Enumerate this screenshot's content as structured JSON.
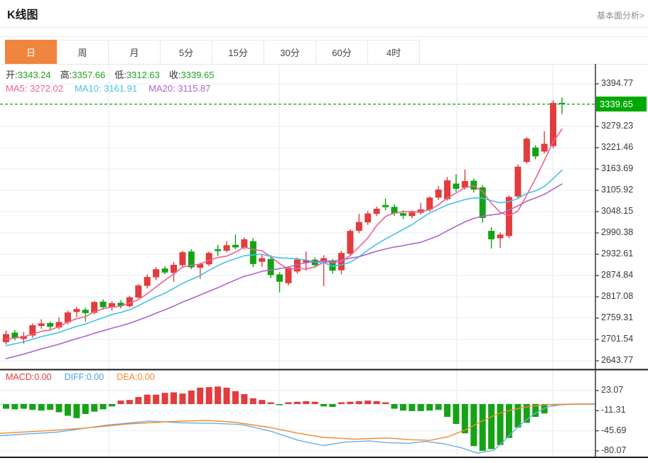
{
  "header": {
    "title": "K线图",
    "link": "基本面分析>"
  },
  "tabs": [
    {
      "label": "日",
      "active": true
    },
    {
      "label": "周",
      "active": false
    },
    {
      "label": "月",
      "active": false
    },
    {
      "label": "5分",
      "active": false
    },
    {
      "label": "15分",
      "active": false
    },
    {
      "label": "30分",
      "active": false
    },
    {
      "label": "60分",
      "active": false
    },
    {
      "label": "4时",
      "active": false
    }
  ],
  "ohlc": {
    "open_label": "开:",
    "open_value": "3343.24",
    "high_label": "高:",
    "high_value": "3357.66",
    "low_label": "低:",
    "low_value": "3312.63",
    "close_label": "收:",
    "close_value": "3339.65"
  },
  "ma_legend": {
    "ma5": "MA5: 3272.02",
    "ma10": "MA10: 3161.91",
    "ma20": "MA20: 3115.87"
  },
  "macd_legend": {
    "macd": "MACD:0.00",
    "diff": "DIFF:0.00",
    "dea": "DEA:0.00"
  },
  "colors": {
    "up": "#e23c3c",
    "down": "#15a315",
    "price_badge_bg": "#00a800",
    "price_line": "#00aa00",
    "ma5": "#ef6191",
    "ma10": "#49c0e6",
    "ma20": "#b164cb",
    "diff_line": "#6aaee6",
    "dea_line": "#ef8c2e",
    "zero_line": "#b9dbf2",
    "grid": "#e9eef5",
    "vgrid": "#dfe9f3",
    "axis": "#333333",
    "tab_active_bg": "#f0853f",
    "ohlc_value": "#22a422"
  },
  "chart_data": {
    "type": "candlestick",
    "title": "K线图",
    "period_selected": "日",
    "main_panel": {
      "y_ticks": [
        3394.77,
        3279.23,
        3221.46,
        3163.69,
        3105.92,
        3048.15,
        2990.38,
        2932.61,
        2874.84,
        2817.08,
        2759.31,
        2701.54,
        2643.77
      ],
      "current_price": 3339.65,
      "current_price_label": "3339.65",
      "last_ohlc": {
        "open": 3343.24,
        "high": 3357.66,
        "low": 3312.63,
        "close": 3339.65
      },
      "ma_values": {
        "MA5": 3272.02,
        "MA10": 3161.91,
        "MA20": 3115.87
      },
      "ma_periods": [
        5,
        10,
        20
      ],
      "candles_format": [
        "open",
        "high",
        "low",
        "close"
      ],
      "candles": [
        [
          2694,
          2726,
          2688,
          2716
        ],
        [
          2720,
          2727,
          2699,
          2705
        ],
        [
          2703,
          2722,
          2690,
          2711
        ],
        [
          2712,
          2745,
          2706,
          2740
        ],
        [
          2738,
          2756,
          2730,
          2745
        ],
        [
          2746,
          2750,
          2728,
          2736
        ],
        [
          2734,
          2762,
          2729,
          2749
        ],
        [
          2748,
          2780,
          2742,
          2775
        ],
        [
          2776,
          2790,
          2762,
          2784
        ],
        [
          2782,
          2788,
          2750,
          2773
        ],
        [
          2774,
          2806,
          2770,
          2803
        ],
        [
          2804,
          2810,
          2782,
          2789
        ],
        [
          2788,
          2805,
          2780,
          2800
        ],
        [
          2801,
          2808,
          2786,
          2793
        ],
        [
          2792,
          2820,
          2788,
          2816
        ],
        [
          2815,
          2852,
          2812,
          2848
        ],
        [
          2847,
          2878,
          2840,
          2871
        ],
        [
          2870,
          2898,
          2862,
          2892
        ],
        [
          2894,
          2900,
          2878,
          2883
        ],
        [
          2882,
          2912,
          2858,
          2904
        ],
        [
          2903,
          2942,
          2898,
          2938
        ],
        [
          2940,
          2946,
          2892,
          2897
        ],
        [
          2896,
          2910,
          2866,
          2906
        ],
        [
          2905,
          2940,
          2900,
          2936
        ],
        [
          2946,
          2958,
          2928,
          2941
        ],
        [
          2942,
          2968,
          2938,
          2957
        ],
        [
          2958,
          2986,
          2946,
          2951
        ],
        [
          2950,
          2978,
          2946,
          2973
        ],
        [
          2968,
          2976,
          2898,
          2906
        ],
        [
          2912,
          2934,
          2898,
          2922
        ],
        [
          2920,
          2930,
          2868,
          2876
        ],
        [
          2878,
          2884,
          2829,
          2858
        ],
        [
          2854,
          2900,
          2848,
          2896
        ],
        [
          2886,
          2924,
          2880,
          2918
        ],
        [
          2910,
          2940,
          2888,
          2916
        ],
        [
          2918,
          2924,
          2896,
          2903
        ],
        [
          2912,
          2930,
          2846,
          2922
        ],
        [
          2915,
          2920,
          2880,
          2888
        ],
        [
          2889,
          2942,
          2878,
          2936
        ],
        [
          2934,
          3000,
          2928,
          2996
        ],
        [
          2996,
          3042,
          2990,
          3020
        ],
        [
          3019,
          3050,
          3012,
          3043
        ],
        [
          3042,
          3062,
          3036,
          3056
        ],
        [
          3066,
          3084,
          3052,
          3060
        ],
        [
          3061,
          3068,
          3036,
          3043
        ],
        [
          3044,
          3052,
          3028,
          3037
        ],
        [
          3036,
          3052,
          3030,
          3046
        ],
        [
          3045,
          3072,
          3040,
          3054
        ],
        [
          3053,
          3090,
          3048,
          3086
        ],
        [
          3086,
          3118,
          3080,
          3108
        ],
        [
          3082,
          3142,
          3078,
          3133
        ],
        [
          3124,
          3150,
          3102,
          3110
        ],
        [
          3113,
          3162,
          3108,
          3131
        ],
        [
          3132,
          3138,
          3100,
          3108
        ],
        [
          3114,
          3120,
          3018,
          3031
        ],
        [
          2996,
          3006,
          2948,
          2973
        ],
        [
          2976,
          2992,
          2950,
          2986
        ],
        [
          2982,
          3092,
          2976,
          3088
        ],
        [
          3089,
          3176,
          3084,
          3170
        ],
        [
          3183,
          3250,
          3178,
          3246
        ],
        [
          3222,
          3228,
          3190,
          3198
        ],
        [
          3211,
          3266,
          3206,
          3232
        ],
        [
          3226,
          3350,
          3220,
          3343
        ],
        [
          3343.24,
          3357.66,
          3312.63,
          3339.65
        ]
      ]
    },
    "macd_panel": {
      "y_ticks": [
        23.07,
        -11.31,
        -45.69,
        -80.07
      ],
      "macd": 0.0,
      "diff": 0.0,
      "dea": 0.0,
      "histogram": [
        -8,
        -9,
        -8,
        -10,
        -11,
        -10,
        -14,
        -20,
        -24,
        -17,
        -13,
        -9,
        -4,
        6,
        7,
        12,
        16,
        16,
        19,
        20,
        18,
        23,
        28,
        29,
        30,
        28,
        22,
        17,
        10,
        7,
        3,
        -2,
        3,
        4,
        5,
        4,
        -4,
        -5,
        3,
        4,
        5,
        6,
        5,
        3,
        -8,
        -11,
        -12,
        -12,
        -11,
        -10,
        -22,
        -34,
        -50,
        -72,
        -80,
        -77,
        -70,
        -58,
        -40,
        -32,
        -22,
        -16,
        -2,
        -1
      ],
      "diff_line": [
        [
          0,
          -54
        ],
        [
          80,
          -48
        ],
        [
          150,
          -36
        ],
        [
          210,
          -29
        ],
        [
          255,
          -32
        ],
        [
          300,
          -33
        ],
        [
          340,
          -35
        ],
        [
          380,
          -46
        ],
        [
          420,
          -62
        ],
        [
          455,
          -71
        ],
        [
          485,
          -65
        ],
        [
          520,
          -63
        ],
        [
          545,
          -66
        ],
        [
          575,
          -67
        ],
        [
          600,
          -64
        ],
        [
          625,
          -68
        ],
        [
          650,
          -75
        ],
        [
          672,
          -84
        ],
        [
          695,
          -79
        ],
        [
          710,
          -62
        ],
        [
          730,
          -38
        ],
        [
          750,
          -18
        ],
        [
          770,
          -5
        ],
        [
          790,
          -1
        ],
        [
          815,
          0
        ],
        [
          838,
          0
        ]
      ],
      "dea_line": [
        [
          0,
          -50
        ],
        [
          60,
          -46
        ],
        [
          120,
          -41
        ],
        [
          180,
          -34
        ],
        [
          240,
          -30
        ],
        [
          290,
          -28
        ],
        [
          330,
          -31
        ],
        [
          380,
          -40
        ],
        [
          420,
          -50
        ],
        [
          456,
          -57
        ],
        [
          500,
          -60
        ],
        [
          545,
          -58
        ],
        [
          580,
          -61
        ],
        [
          605,
          -62
        ],
        [
          630,
          -56
        ],
        [
          655,
          -44
        ],
        [
          680,
          -28
        ],
        [
          700,
          -17
        ],
        [
          720,
          -10
        ],
        [
          745,
          -4
        ],
        [
          770,
          -1
        ],
        [
          805,
          0
        ],
        [
          838,
          0
        ]
      ]
    }
  }
}
